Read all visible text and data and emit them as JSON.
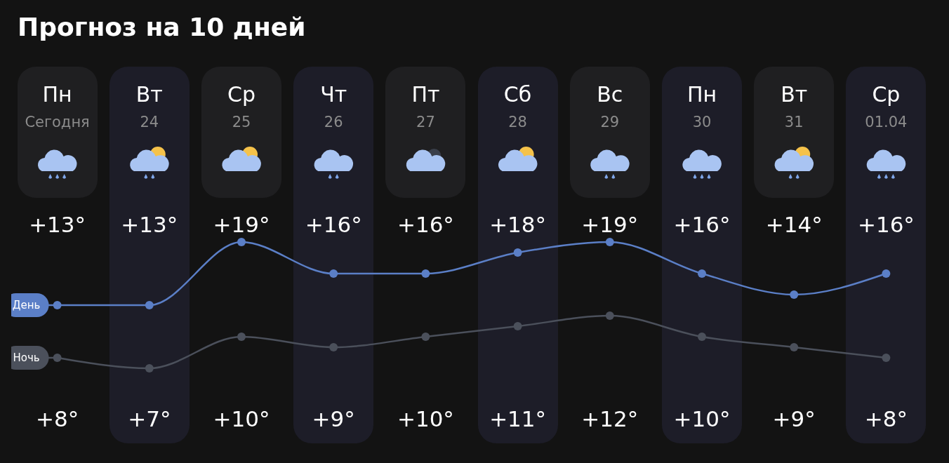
{
  "chart_data": {
    "type": "line",
    "title": "Прогноз на 10 дней",
    "categories": [
      "Пн Сегодня",
      "Вт 24",
      "Ср 25",
      "Чт 26",
      "Пт 27",
      "Сб 28",
      "Вс 29",
      "Пн 30",
      "Вт 31",
      "Ср 01.04"
    ],
    "marker": "circle",
    "line_style": "solid",
    "series": [
      {
        "name": "День",
        "color": "#5b7fc7",
        "values": [
          13,
          13,
          19,
          16,
          16,
          18,
          19,
          16,
          14,
          16
        ],
        "value_labels": [
          "+13°",
          "+13°",
          "+19°",
          "+16°",
          "+16°",
          "+18°",
          "+19°",
          "+16°",
          "+14°",
          "+16°"
        ]
      },
      {
        "name": "Ночь",
        "color": "#4b505b",
        "values": [
          8,
          7,
          10,
          9,
          10,
          11,
          12,
          10,
          9,
          8
        ],
        "value_labels": [
          "+8°",
          "+7°",
          "+10°",
          "+9°",
          "+10°",
          "+11°",
          "+12°",
          "+10°",
          "+9°",
          "+8°"
        ]
      }
    ]
  }
}
